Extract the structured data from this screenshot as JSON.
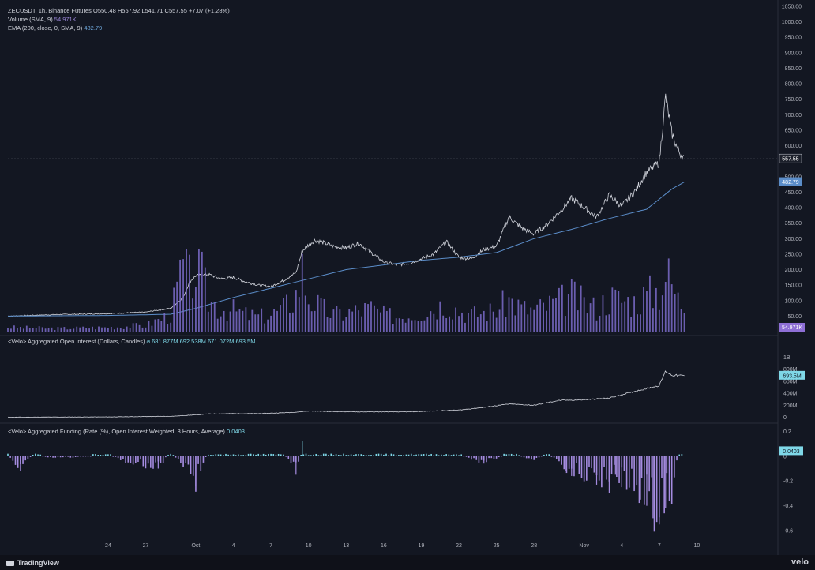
{
  "header": {
    "symbol": "ZECUSDT, 1h, Binance Futures",
    "open": "O550.48",
    "high": "H557.92",
    "low": "L541.71",
    "close": "C557.55",
    "change": "+7.07 (+1.28%)",
    "volume_label": "Volume (SMA, 9)",
    "volume_value": "54.971K",
    "ema_label": "EMA (200, close, 0, SMA, 9)",
    "ema_value": "482.79"
  },
  "oi_legend": {
    "label": "<Velo> Aggregated Open Interest (Dollars, Candles)",
    "values": "⌀ 681.877M 692.538M 671.072M 693.5M"
  },
  "funding_legend": {
    "label": "<Velo> Aggregated Funding (Rate (%), Open Interest Weighted, 8 Hours, Average)",
    "value": "0.0403"
  },
  "footer": {
    "brand": "TradingView",
    "watermark": "velo"
  },
  "colors": {
    "background": "#131722",
    "price": "#d1d4dc",
    "ema": "#5b8dc9",
    "volume": "#7b6bc9",
    "oi": "#d1d4dc",
    "funding_pos": "#7fd8e8",
    "funding_neg": "#a58ce0"
  },
  "chart_data": [
    {
      "type": "line",
      "name": "price",
      "title": "ZECUSDT, 1h, Binance Futures",
      "x_ticks": [
        "24",
        "27",
        "Oct",
        "4",
        "7",
        "10",
        "13",
        "16",
        "19",
        "22",
        "25",
        "28",
        "Nov",
        "4",
        "7",
        "10"
      ],
      "x_tick_days": [
        0,
        3,
        7,
        10,
        13,
        16,
        19,
        22,
        25,
        28,
        31,
        34,
        38,
        41,
        44,
        47
      ],
      "y_ticks": [
        50,
        100,
        150,
        200,
        250,
        300,
        350,
        400,
        450,
        500,
        550,
        600,
        650,
        700,
        750,
        800,
        850,
        900,
        950,
        1000,
        1050
      ],
      "ylim": [
        0,
        1060
      ],
      "y_labels": [
        "50.00",
        "100.00",
        "150.00",
        "200.00",
        "250.00",
        "300.00",
        "350.00",
        "400.00",
        "450.00",
        "500.00",
        "550.00",
        "600.00",
        "650.00",
        "700.00",
        "750.00",
        "800.00",
        "850.00",
        "900.00",
        "950.00",
        "1000.00",
        "1050.00"
      ],
      "last_price_label": "557.55",
      "last_price": 557.55,
      "ema_label": "482.79",
      "ema_last": 482.79,
      "grid": false,
      "series": [
        {
          "name": "close",
          "x": [
            -8,
            -4,
            0,
            3,
            5,
            6,
            6.5,
            7,
            8,
            9,
            10,
            11,
            12,
            13,
            14,
            15,
            15.5,
            16,
            16.5,
            17,
            18,
            19,
            20,
            21,
            22,
            23,
            24,
            25,
            26,
            27,
            28,
            29,
            30,
            31,
            32,
            33,
            34,
            35,
            36,
            37,
            38,
            39,
            40,
            41,
            42,
            43,
            44,
            44.5,
            45,
            45.5,
            46
          ],
          "values": [
            50,
            55,
            58,
            63,
            75,
            110,
            160,
            180,
            185,
            170,
            175,
            160,
            150,
            145,
            165,
            190,
            260,
            280,
            295,
            290,
            275,
            270,
            285,
            255,
            225,
            215,
            220,
            235,
            250,
            290,
            240,
            235,
            265,
            275,
            370,
            335,
            315,
            345,
            385,
            430,
            400,
            370,
            440,
            405,
            450,
            515,
            545,
            760,
            640,
            585,
            557.55
          ]
        },
        {
          "name": "EMA (200)",
          "x": [
            -8,
            0,
            5,
            7,
            10,
            13,
            16,
            19,
            22,
            25,
            28,
            31,
            34,
            37,
            40,
            43,
            45,
            46
          ],
          "values": [
            50,
            52,
            56,
            75,
            110,
            140,
            170,
            200,
            215,
            230,
            240,
            255,
            300,
            330,
            365,
            395,
            460,
            482.79
          ]
        }
      ]
    },
    {
      "type": "bar",
      "name": "Volume (SMA, 9)",
      "value_label": "54.971K",
      "x": [
        -8,
        -4,
        0,
        3,
        5,
        6,
        6.5,
        7,
        7.5,
        8,
        9,
        10,
        11,
        12,
        13,
        14,
        15,
        15.5,
        16,
        17,
        18,
        19,
        20,
        21,
        22,
        23,
        24,
        25,
        26,
        27,
        28,
        29,
        30,
        31,
        32,
        33,
        34,
        35,
        36,
        37,
        38,
        39,
        40,
        41,
        42,
        43,
        44,
        44.5,
        45,
        45.5,
        46
      ],
      "values": [
        4,
        3,
        4,
        6,
        16,
        62,
        48,
        60,
        50,
        30,
        22,
        20,
        16,
        14,
        16,
        22,
        35,
        58,
        32,
        22,
        16,
        18,
        20,
        22,
        16,
        14,
        16,
        18,
        22,
        28,
        20,
        16,
        18,
        20,
        30,
        22,
        20,
        24,
        28,
        34,
        26,
        22,
        32,
        30,
        28,
        34,
        40,
        55,
        45,
        30,
        25
      ]
    },
    {
      "type": "area",
      "name": "<Velo> Aggregated Open Interest (Dollars, Candles)",
      "y_ticks": [
        0,
        200,
        400,
        600,
        800,
        1000
      ],
      "y_labels": [
        "0",
        "200M",
        "400M",
        "600M",
        "800M",
        "1B"
      ],
      "ylim": [
        -20,
        1060
      ],
      "last_label": "693.5M",
      "last_value": 693.5,
      "x": [
        -8,
        0,
        5,
        7,
        8,
        10,
        12,
        14,
        15,
        16,
        18,
        20,
        22,
        24,
        26,
        28,
        30,
        32,
        34,
        36,
        38,
        40,
        42,
        44,
        44.5,
        45,
        46
      ],
      "values": [
        0,
        5,
        15,
        40,
        55,
        60,
        60,
        75,
        85,
        105,
        95,
        90,
        90,
        90,
        105,
        120,
        165,
        220,
        200,
        280,
        290,
        320,
        430,
        530,
        770,
        700,
        693.5
      ]
    },
    {
      "type": "bar",
      "name": "<Velo> Aggregated Funding (Rate (%), Open Interest Weighted, 8 Hours, Average)",
      "y_ticks": [
        0.2,
        0,
        -0.2,
        -0.4,
        -0.6
      ],
      "y_labels": [
        "0.2",
        "0",
        "-0.2",
        "-0.4",
        "-0.6"
      ],
      "ylim": [
        -0.65,
        0.24
      ],
      "last_label": "0.0403",
      "last_value": 0.0403,
      "x": [
        -8,
        -7,
        -6,
        -4,
        0,
        2,
        4,
        5,
        6,
        7,
        8,
        10,
        12,
        14,
        15,
        15.5,
        16,
        18,
        20,
        22,
        24,
        26,
        28,
        30,
        32,
        34,
        35,
        36,
        36.5,
        37,
        38,
        39,
        40,
        40.5,
        41,
        42,
        42.5,
        43,
        43.5,
        44,
        44.5,
        45,
        45.5,
        46
      ],
      "values": [
        0.01,
        -0.12,
        0.01,
        -0.02,
        0.01,
        -0.07,
        -0.1,
        0.03,
        -0.08,
        -0.24,
        0.05,
        0.01,
        0.01,
        0.02,
        -0.15,
        0.12,
        0.02,
        0.01,
        0.01,
        0.01,
        0.01,
        0.01,
        0.01,
        -0.06,
        0.02,
        -0.03,
        0.02,
        -0.05,
        -0.12,
        -0.16,
        -0.2,
        -0.23,
        -0.3,
        -0.15,
        -0.25,
        -0.27,
        -0.35,
        -0.4,
        -0.5,
        -0.55,
        -0.42,
        -0.35,
        0.02,
        0.0403
      ]
    }
  ]
}
